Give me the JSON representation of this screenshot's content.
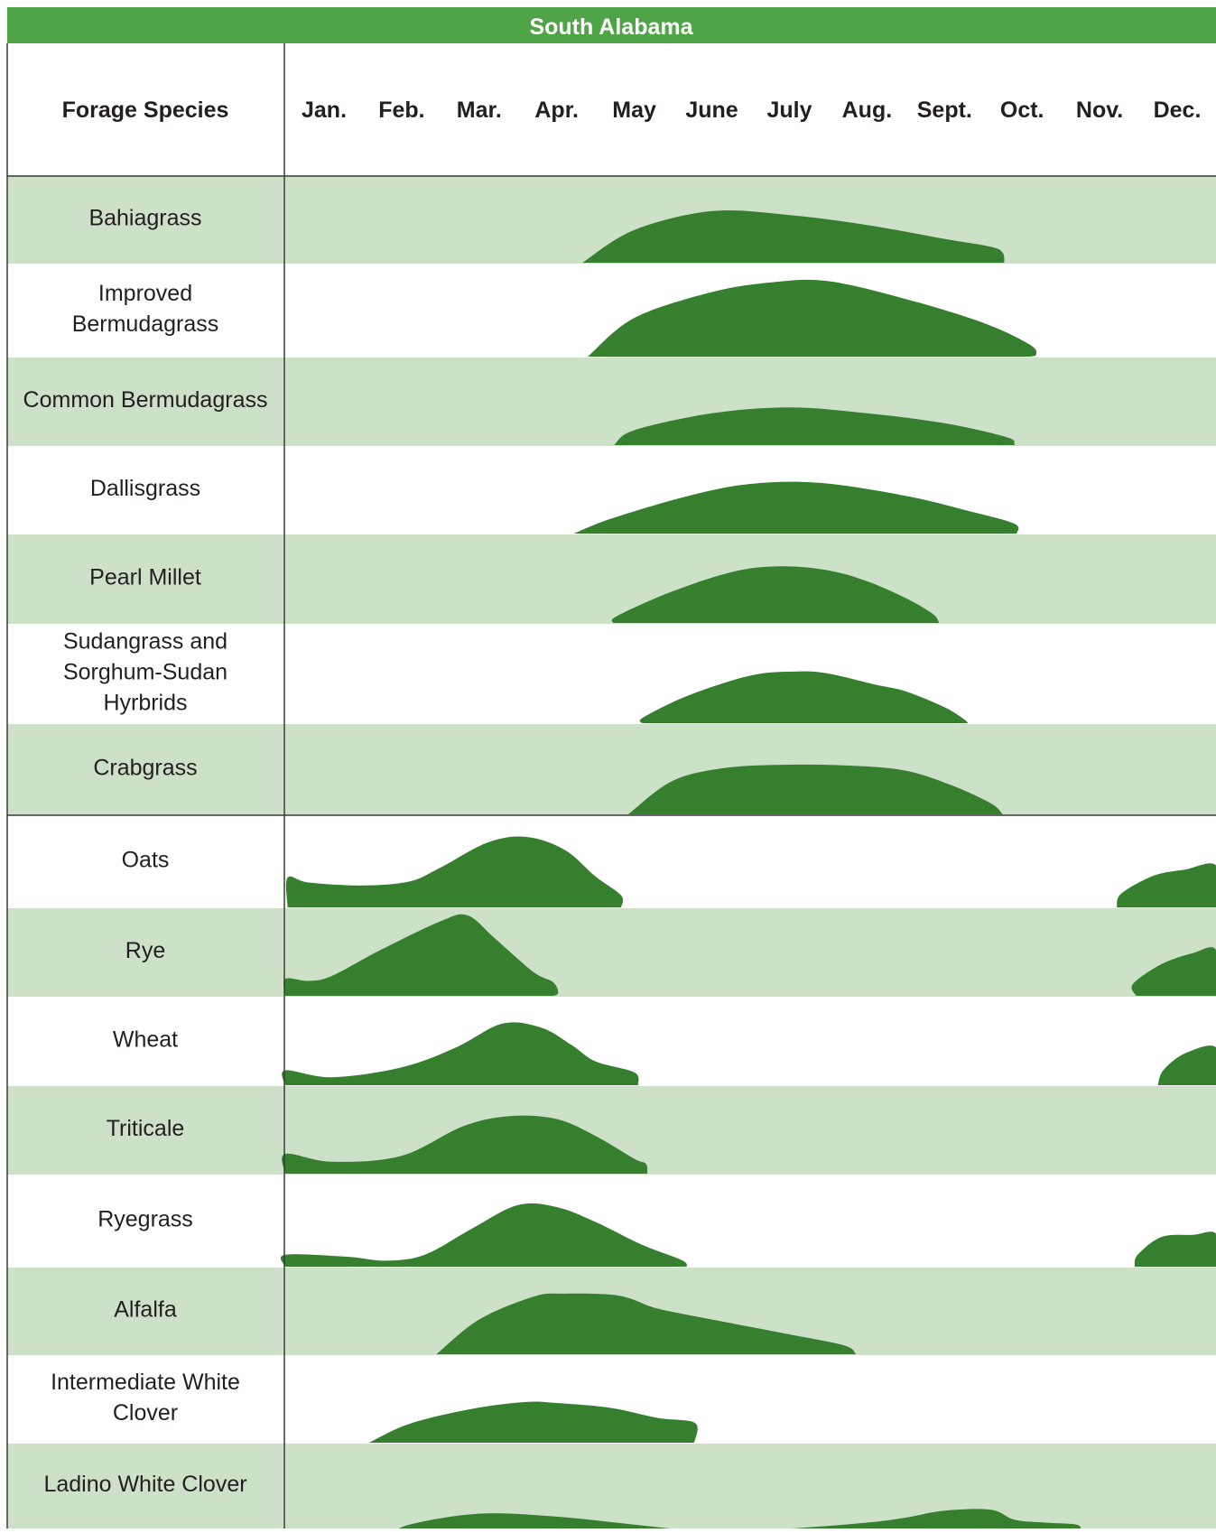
{
  "title": "South Alabama",
  "header": {
    "species_label": "Forage Species",
    "months": [
      "Jan.",
      "Feb.",
      "Mar.",
      "Apr.",
      "May",
      "June",
      "July",
      "Aug.",
      "Sept.",
      "Oct.",
      "Nov.",
      "Dec."
    ]
  },
  "colors": {
    "banner": "#4ea447",
    "band": "#cde0c8",
    "curve": "#357f2f",
    "rule": "#3a3a3a",
    "text": "#231f20"
  },
  "chart_data": {
    "type": "area",
    "title": "South Alabama",
    "x_axis": "month",
    "x_range": [
      0,
      12
    ],
    "y_axis": "relative forage production (unlabeled)",
    "y_range": [
      0,
      1
    ],
    "note_units": "x = months from start of Jan. (0 = Jan. 1, 12 = Dec. 31); y = relative height of production curve",
    "species": [
      {
        "name": "Bahiagrass",
        "group": 1,
        "band": true,
        "segments": [
          {
            "points": [
              [
                3.83,
                0
              ],
              [
                4.5,
                0.33
              ],
              [
                5.5,
                0.52
              ],
              [
                6.5,
                0.48
              ],
              [
                7.5,
                0.38
              ],
              [
                8.5,
                0.24
              ],
              [
                9.1,
                0.16
              ],
              [
                9.25,
                0.1
              ],
              [
                9.27,
                0
              ]
            ]
          }
        ]
      },
      {
        "name": "Improved Bermudagrass",
        "group": 1,
        "band": false,
        "segments": [
          {
            "points": [
              [
                3.9,
                0
              ],
              [
                4.5,
                0.39
              ],
              [
                5.5,
                0.65
              ],
              [
                6.3,
                0.75
              ],
              [
                7.0,
                0.76
              ],
              [
                8.0,
                0.58
              ],
              [
                9.0,
                0.34
              ],
              [
                9.6,
                0.12
              ],
              [
                9.68,
                0.02
              ],
              [
                9.6,
                0
              ]
            ]
          }
        ]
      },
      {
        "name": "Common Bermudagrass",
        "group": 1,
        "band": true,
        "segments": [
          {
            "points": [
              [
                4.24,
                0
              ],
              [
                4.5,
                0.15
              ],
              [
                5.5,
                0.32
              ],
              [
                6.5,
                0.38
              ],
              [
                7.5,
                0.32
              ],
              [
                8.5,
                0.22
              ],
              [
                9.3,
                0.08
              ],
              [
                9.4,
                0.01
              ],
              [
                9.4,
                0
              ]
            ]
          }
        ]
      },
      {
        "name": "Dallisgrass",
        "group": 1,
        "band": false,
        "segments": [
          {
            "points": [
              [
                3.72,
                0
              ],
              [
                4.2,
                0.15
              ],
              [
                5.2,
                0.38
              ],
              [
                6.0,
                0.5
              ],
              [
                6.9,
                0.51
              ],
              [
                8.0,
                0.38
              ],
              [
                8.8,
                0.23
              ],
              [
                9.4,
                0.1
              ],
              [
                9.43,
                0
              ]
            ]
          }
        ]
      },
      {
        "name": "Pearl Millet",
        "group": 1,
        "band": true,
        "segments": [
          {
            "points": [
              [
                4.23,
                0
              ],
              [
                4.28,
                0.07
              ],
              [
                5.0,
                0.32
              ],
              [
                5.8,
                0.52
              ],
              [
                6.4,
                0.57
              ],
              [
                7.0,
                0.53
              ],
              [
                7.5,
                0.42
              ],
              [
                8.0,
                0.25
              ],
              [
                8.35,
                0.09
              ],
              [
                8.43,
                0
              ]
            ]
          }
        ]
      },
      {
        "name": "Sudangrass and Sorghum-Sudan Hyrbrids",
        "group": 1,
        "band": false,
        "segments": [
          {
            "points": [
              [
                4.6,
                0
              ],
              [
                4.62,
                0.06
              ],
              [
                5.2,
                0.28
              ],
              [
                6.0,
                0.48
              ],
              [
                6.6,
                0.52
              ],
              [
                7.0,
                0.5
              ],
              [
                7.6,
                0.39
              ],
              [
                8.0,
                0.32
              ],
              [
                8.5,
                0.16
              ],
              [
                8.75,
                0.04
              ],
              [
                8.8,
                0
              ]
            ]
          }
        ]
      },
      {
        "name": "Crabgrass",
        "group": 1,
        "band": true,
        "segments": [
          {
            "points": [
              [
                4.42,
                0
              ],
              [
                5.0,
                0.34
              ],
              [
                5.7,
                0.47
              ],
              [
                6.5,
                0.5
              ],
              [
                7.3,
                0.49
              ],
              [
                8.0,
                0.44
              ],
              [
                8.6,
                0.29
              ],
              [
                9.1,
                0.11
              ],
              [
                9.25,
                0
              ]
            ]
          }
        ]
      },
      {
        "name": "Oats",
        "group": 2,
        "band": false,
        "segments": [
          {
            "points": [
              [
                0.03,
                0
              ],
              [
                0.03,
                0.3
              ],
              [
                0.3,
                0.25
              ],
              [
                1.0,
                0.22
              ],
              [
                1.6,
                0.26
              ],
              [
                2.0,
                0.4
              ],
              [
                2.6,
                0.65
              ],
              [
                3.1,
                0.71
              ],
              [
                3.6,
                0.58
              ],
              [
                4.0,
                0.31
              ],
              [
                4.33,
                0.12
              ],
              [
                4.33,
                0
              ]
            ]
          },
          {
            "points": [
              [
                10.72,
                0
              ],
              [
                10.78,
                0.14
              ],
              [
                11.2,
                0.32
              ],
              [
                11.6,
                0.38
              ],
              [
                12.0,
                0.42
              ],
              [
                12.0,
                0
              ]
            ]
          }
        ]
      },
      {
        "name": "Rye",
        "group": 2,
        "band": true,
        "segments": [
          {
            "points": [
              [
                0.0,
                0
              ],
              [
                0.0,
                0.17
              ],
              [
                0.3,
                0.15
              ],
              [
                0.6,
                0.2
              ],
              [
                1.2,
                0.45
              ],
              [
                2.0,
                0.75
              ],
              [
                2.35,
                0.81
              ],
              [
                2.7,
                0.58
              ],
              [
                3.2,
                0.24
              ],
              [
                3.45,
                0.14
              ],
              [
                3.52,
                0.03
              ],
              [
                3.45,
                0
              ]
            ]
          },
          {
            "points": [
              [
                10.97,
                0
              ],
              [
                10.93,
                0.12
              ],
              [
                11.3,
                0.32
              ],
              [
                11.7,
                0.43
              ],
              [
                12.0,
                0.46
              ],
              [
                12.0,
                0
              ]
            ]
          }
        ]
      },
      {
        "name": "Wheat",
        "group": 2,
        "band": false,
        "segments": [
          {
            "points": [
              [
                0.0,
                0
              ],
              [
                0.0,
                0.15
              ],
              [
                0.6,
                0.08
              ],
              [
                1.5,
                0.18
              ],
              [
                2.2,
                0.38
              ],
              [
                2.8,
                0.62
              ],
              [
                3.3,
                0.58
              ],
              [
                3.7,
                0.4
              ],
              [
                4.0,
                0.24
              ],
              [
                4.5,
                0.13
              ],
              [
                4.55,
                0.01
              ],
              [
                4.55,
                0
              ]
            ]
          },
          {
            "points": [
              [
                11.25,
                0
              ],
              [
                11.32,
                0.15
              ],
              [
                11.6,
                0.32
              ],
              [
                12.0,
                0.38
              ],
              [
                12.0,
                0
              ]
            ]
          }
        ]
      },
      {
        "name": "Triticale",
        "group": 2,
        "band": true,
        "segments": [
          {
            "points": [
              [
                0.0,
                0
              ],
              [
                0.0,
                0.2
              ],
              [
                0.6,
                0.12
              ],
              [
                1.5,
                0.18
              ],
              [
                2.3,
                0.48
              ],
              [
                2.9,
                0.58
              ],
              [
                3.5,
                0.55
              ],
              [
                4.0,
                0.38
              ],
              [
                4.5,
                0.15
              ],
              [
                4.65,
                0.1
              ],
              [
                4.67,
                0
              ]
            ]
          }
        ]
      },
      {
        "name": "Ryegrass",
        "group": 2,
        "band": false,
        "segments": [
          {
            "points": [
              [
                0.0,
                0
              ],
              [
                0.0,
                0.12
              ],
              [
                0.8,
                0.1
              ],
              [
                1.3,
                0.06
              ],
              [
                1.8,
                0.12
              ],
              [
                2.4,
                0.38
              ],
              [
                3.0,
                0.62
              ],
              [
                3.5,
                0.6
              ],
              [
                4.0,
                0.45
              ],
              [
                4.6,
                0.22
              ],
              [
                5.1,
                0.07
              ],
              [
                5.18,
                0.01
              ],
              [
                5.15,
                0
              ]
            ]
          },
          {
            "points": [
              [
                10.95,
                0
              ],
              [
                10.99,
                0.12
              ],
              [
                11.3,
                0.3
              ],
              [
                11.7,
                0.32
              ],
              [
                12.0,
                0.33
              ],
              [
                12.0,
                0
              ]
            ]
          }
        ]
      },
      {
        "name": "Alfalfa",
        "group": 2,
        "band": true,
        "segments": [
          {
            "points": [
              [
                1.95,
                0
              ],
              [
                2.5,
                0.35
              ],
              [
                3.2,
                0.58
              ],
              [
                3.6,
                0.61
              ],
              [
                4.3,
                0.59
              ],
              [
                4.8,
                0.46
              ],
              [
                5.5,
                0.35
              ],
              [
                6.5,
                0.2
              ],
              [
                7.2,
                0.09
              ],
              [
                7.35,
                0.01
              ],
              [
                7.33,
                0
              ]
            ]
          }
        ]
      },
      {
        "name": "Intermediate White Clover",
        "group": 2,
        "band": false,
        "segments": [
          {
            "points": [
              [
                1.08,
                0
              ],
              [
                1.6,
                0.19
              ],
              [
                2.4,
                0.34
              ],
              [
                3.1,
                0.41
              ],
              [
                3.5,
                0.4
              ],
              [
                4.2,
                0.35
              ],
              [
                4.8,
                0.25
              ],
              [
                5.28,
                0.2
              ],
              [
                5.28,
                0.02
              ],
              [
                5.24,
                0
              ]
            ]
          }
        ]
      },
      {
        "name": "Ladino White Clover",
        "group": 2,
        "band": true,
        "segments": [
          {
            "points": [
              [
                1.3,
                -0.1
              ],
              [
                1.6,
                0.03
              ],
              [
                2.5,
                0.14
              ],
              [
                3.5,
                0.11
              ],
              [
                4.5,
                0.03
              ],
              [
                5.5,
                -0.04
              ],
              [
                6.5,
                -0.01
              ],
              [
                7.5,
                0.05
              ],
              [
                8.0,
                0.1
              ],
              [
                8.5,
                0.17
              ],
              [
                9.1,
                0.18
              ],
              [
                9.4,
                0.08
              ],
              [
                9.8,
                0.05
              ],
              [
                10.2,
                0.03
              ],
              [
                10.25,
                -0.03
              ],
              [
                10.2,
                -0.12
              ],
              [
                1.3,
                -0.12
              ]
            ]
          }
        ]
      }
    ]
  }
}
